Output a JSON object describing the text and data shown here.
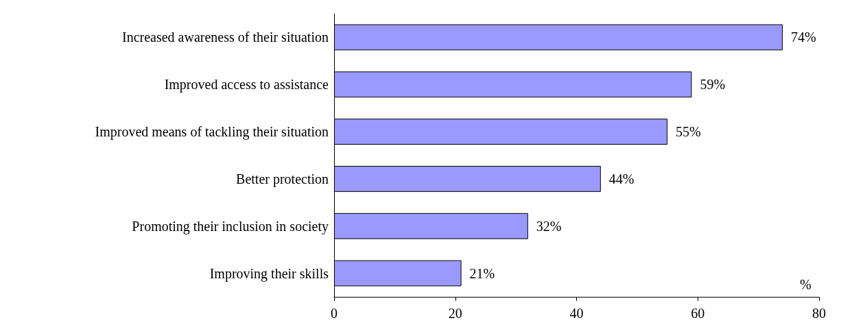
{
  "chart_data": {
    "type": "bar",
    "orientation": "horizontal",
    "xlabel": "%",
    "categories": [
      "Increased awareness of their situation",
      "Improved access to assistance",
      "Improved means of tackling their situation",
      "Better protection",
      "Promoting their inclusion in society",
      "Improving their skills"
    ],
    "values": [
      74,
      59,
      55,
      44,
      32,
      21
    ],
    "value_labels": [
      "74%",
      "59%",
      "55%",
      "44%",
      "32%",
      "21%"
    ],
    "color": "#9999ff",
    "xlim": [
      0,
      80
    ],
    "xticks": [
      0,
      20,
      40,
      60,
      80
    ],
    "grid": false
  }
}
